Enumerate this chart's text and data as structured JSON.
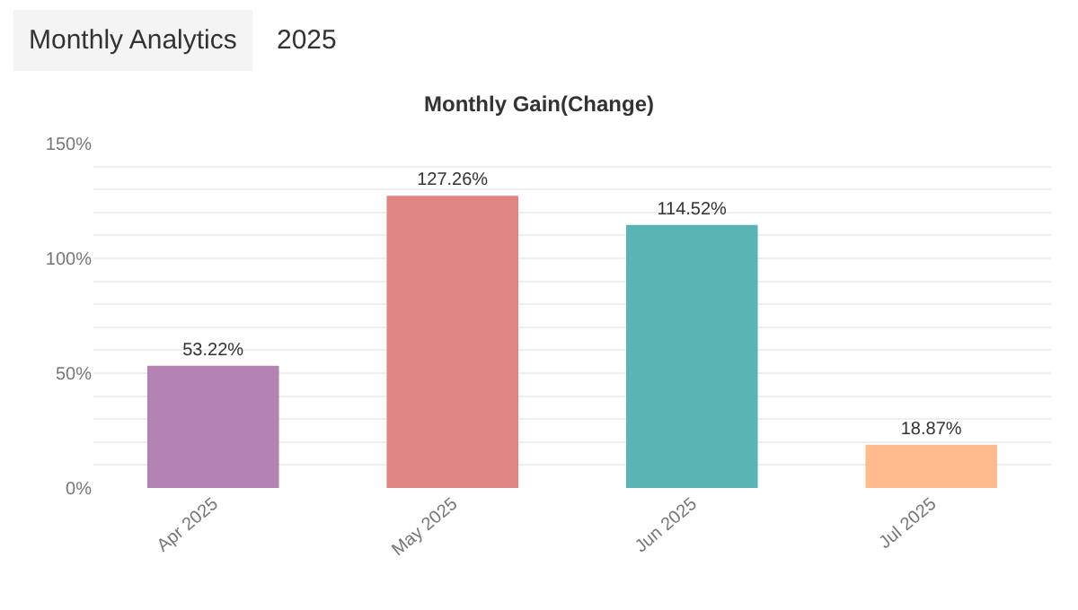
{
  "chart_data": {
    "type": "bar",
    "title": "Monthly Gain(Change)",
    "annotations": [
      "Monthly Analytics",
      "2025"
    ],
    "categories": [
      "Apr 2025",
      "May 2025",
      "Jun 2025",
      "Jul 2025"
    ],
    "values": [
      53.22,
      127.26,
      114.52,
      18.87
    ],
    "colors": [
      "#b384b3",
      "#e08482",
      "#5ab4b4",
      "#ffbb8c"
    ],
    "value_labels": [
      "53.22%",
      "127.26%",
      "114.52%",
      "18.87%"
    ],
    "ylim": [
      0,
      150
    ],
    "yticks": [
      {
        "value": 0,
        "label": "0%"
      },
      {
        "value": 10,
        "label": null
      },
      {
        "value": 20,
        "label": null
      },
      {
        "value": 30,
        "label": null
      },
      {
        "value": 40,
        "label": null
      },
      {
        "value": 50,
        "label": "50%"
      },
      {
        "value": 60,
        "label": null
      },
      {
        "value": 70,
        "label": null
      },
      {
        "value": 80,
        "label": null
      },
      {
        "value": 90,
        "label": null
      },
      {
        "value": 100,
        "label": "100%"
      },
      {
        "value": 110,
        "label": null
      },
      {
        "value": 120,
        "label": null
      },
      {
        "value": 130,
        "label": null
      },
      {
        "value": 140,
        "label": null
      },
      {
        "value": 150,
        "label": "150%"
      }
    ],
    "grid": "y"
  }
}
